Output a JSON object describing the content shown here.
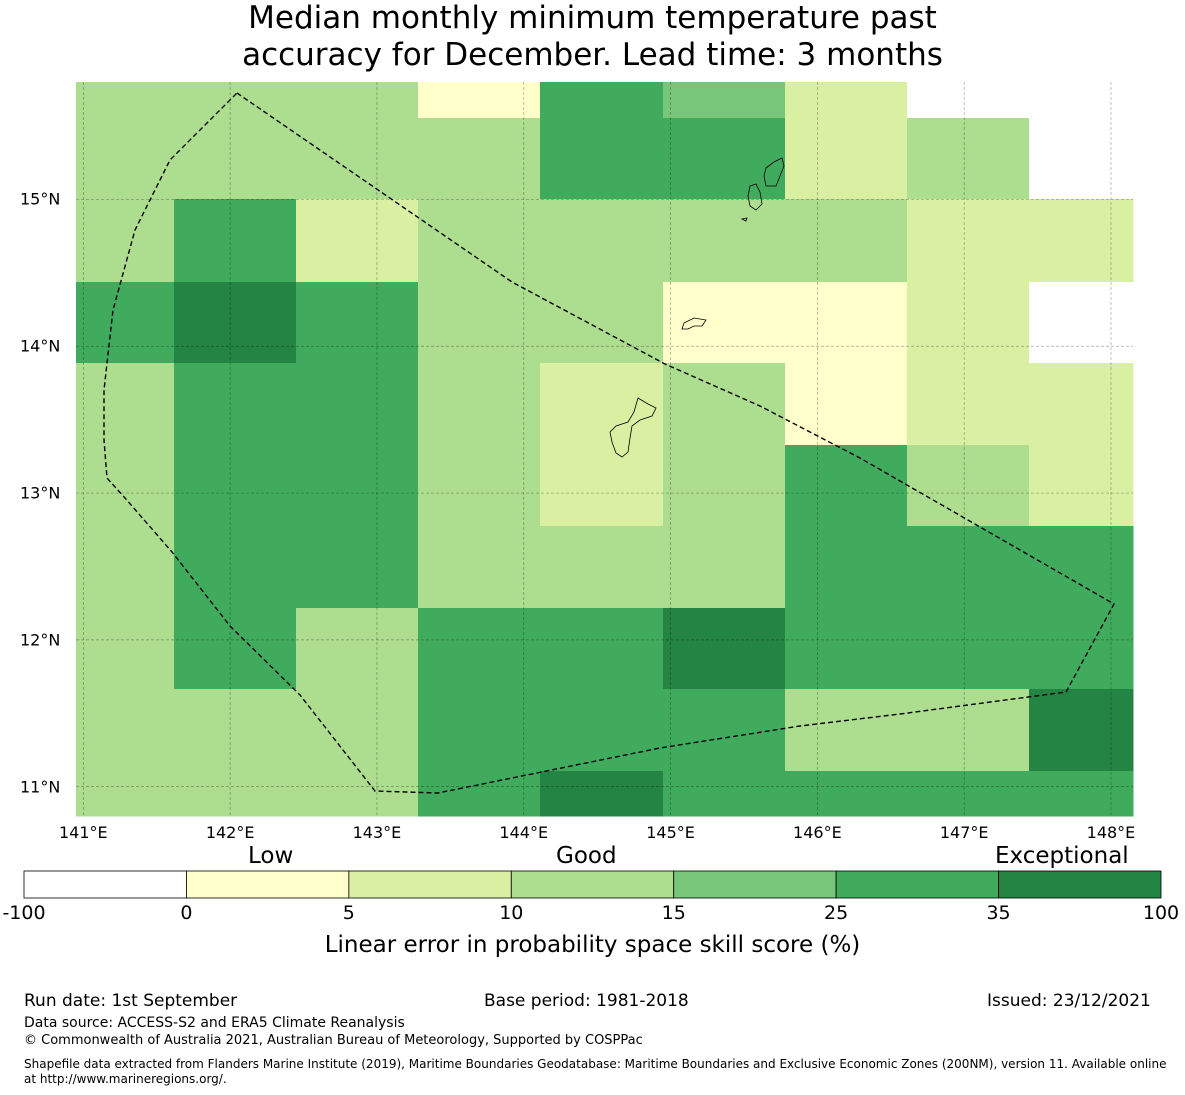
{
  "title_line1": "Median monthly minimum temperature past",
  "title_line2": "accuracy for December. Lead time: 3 months",
  "map": {
    "lon_range": [
      140.95,
      148.15
    ],
    "lat_range": [
      10.8,
      15.8
    ],
    "lon_ticks": [
      "141°E",
      "142°E",
      "143°E",
      "144°E",
      "145°E",
      "146°E",
      "147°E",
      "148°E"
    ],
    "lat_ticks": [
      "15°N",
      "14°N",
      "13°N",
      "12°N",
      "11°N"
    ],
    "grid_rows": [
      [
        3,
        3,
        3,
        1,
        5,
        4,
        2,
        0,
        0
      ],
      [
        3,
        3,
        3,
        3,
        5,
        5,
        2,
        3,
        0
      ],
      [
        3,
        5,
        2,
        3,
        3,
        3,
        3,
        2,
        2
      ],
      [
        5,
        6,
        5,
        3,
        3,
        1,
        1,
        2,
        0
      ],
      [
        3,
        5,
        5,
        3,
        2,
        3,
        1,
        2,
        2
      ],
      [
        3,
        5,
        5,
        3,
        2,
        3,
        5,
        3,
        2
      ],
      [
        3,
        5,
        5,
        3,
        3,
        3,
        5,
        5,
        5
      ],
      [
        3,
        5,
        3,
        5,
        5,
        6,
        5,
        5,
        5
      ],
      [
        3,
        3,
        3,
        5,
        5,
        5,
        3,
        3,
        6
      ],
      [
        3,
        3,
        3,
        5,
        6,
        5,
        5,
        5,
        5
      ]
    ]
  },
  "colorbar": {
    "categories": [
      "Low",
      "Good",
      "Exceptional"
    ],
    "colors": [
      "#ffffff",
      "#ffffcc",
      "#d9f0a3",
      "#addd8e",
      "#78c679",
      "#41ab5d",
      "#238443"
    ],
    "ticks": [
      "-100",
      "0",
      "5",
      "10",
      "15",
      "25",
      "35",
      "100"
    ],
    "label": "Linear error in probability space skill score (%)"
  },
  "footer": {
    "run_date": "Run date: 1st September",
    "base_period": "Base period: 1981-2018",
    "issued": "Issued: 23/12/2021",
    "data_source": "Data source: ACCESS-S2 and ERA5 Climate Reanalysis",
    "copyright": "© Commonwealth of Australia 2021, Australian Bureau of Meteorology, Supported by COSPPac",
    "shapefile_line1": "Shapefile data extracted from Flanders Marine Institute (2019), Maritime Boundaries Geodatabase: Maritime Boundaries and Exclusive Economic Zones (200NM), version 11. Available online",
    "shapefile_line2": "at http://www.marineregions.org/."
  }
}
